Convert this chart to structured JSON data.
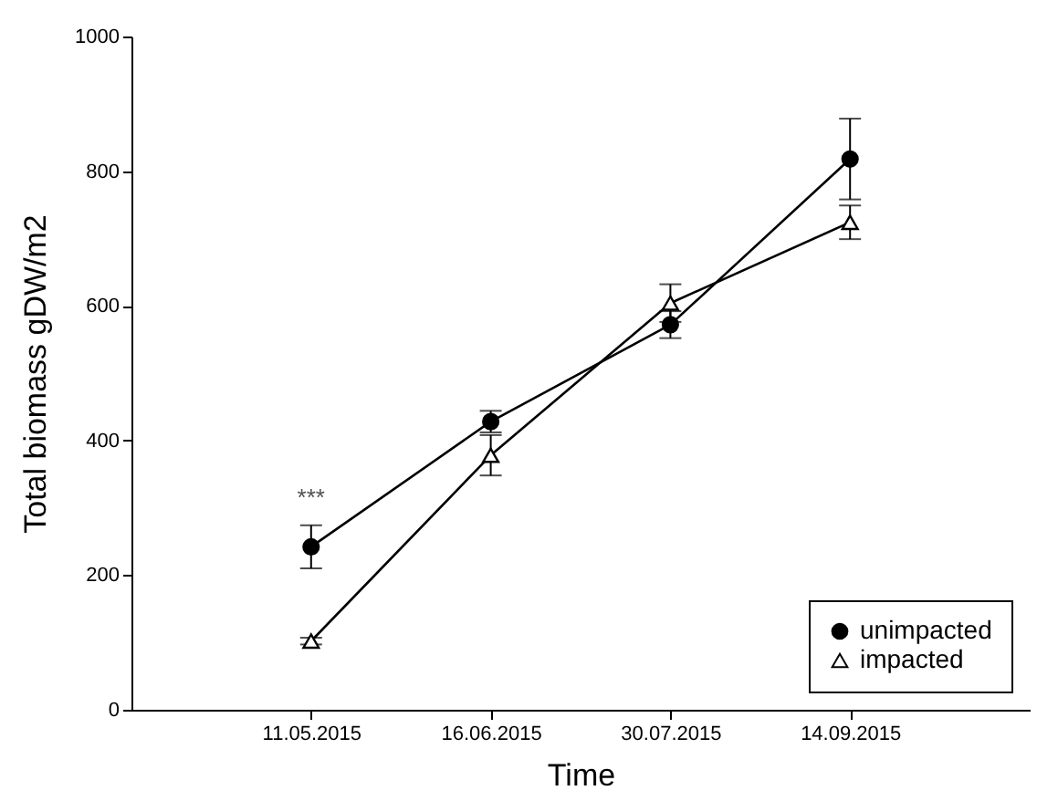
{
  "chart_data": {
    "type": "line",
    "xlabel": "Time",
    "ylabel": "Total biomass gDW/m2",
    "categories": [
      "11.05.2015",
      "16.06.2015",
      "30.07.2015",
      "14.09.2015"
    ],
    "series": [
      {
        "name": "unimpacted",
        "color": "#000000",
        "marker": "circle",
        "values": [
          242,
          428,
          572,
          818
        ],
        "errors": [
          32,
          16,
          20,
          60
        ]
      },
      {
        "name": "impacted",
        "color": "#000000",
        "marker": "triangle",
        "values": [
          102,
          378,
          604,
          724
        ],
        "errors": [
          5,
          30,
          28,
          25
        ]
      }
    ],
    "ylim": [
      0,
      1000
    ],
    "yticks": [
      0,
      200,
      400,
      600,
      800,
      1000
    ],
    "grid": false,
    "legend": "bottom right",
    "line_style": "solid",
    "annotations": [
      "***"
    ]
  }
}
